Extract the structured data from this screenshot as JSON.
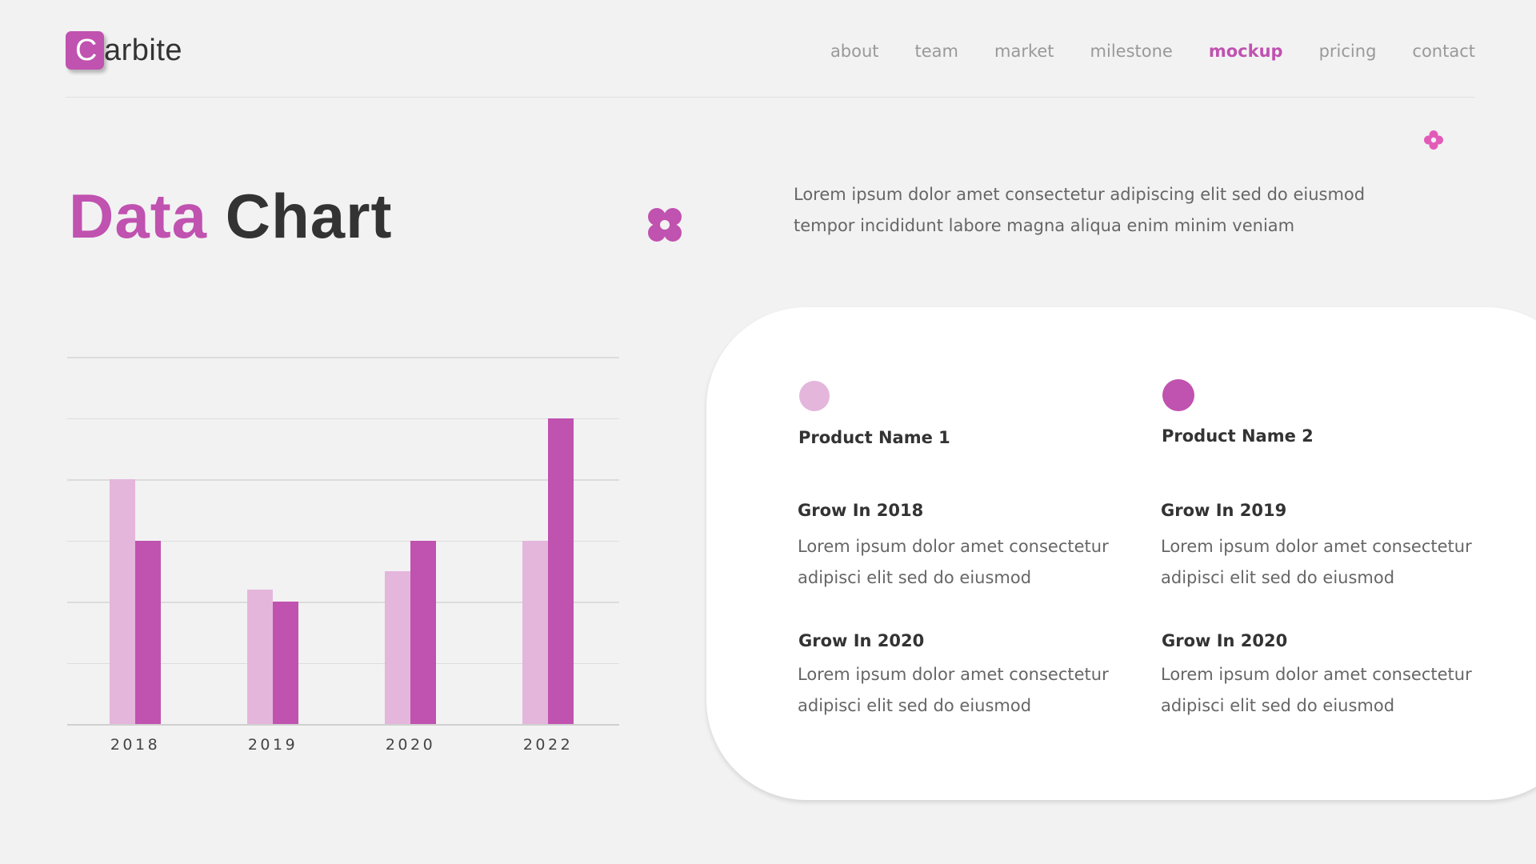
{
  "header": {
    "logo_letter": "C",
    "logo_rest": "arbite",
    "nav": [
      {
        "label": "about",
        "active": false
      },
      {
        "label": "team",
        "active": false
      },
      {
        "label": "market",
        "active": false
      },
      {
        "label": "milestone",
        "active": false
      },
      {
        "label": "mockup",
        "active": true
      },
      {
        "label": "pricing",
        "active": false
      },
      {
        "label": "contact",
        "active": false
      }
    ]
  },
  "title": {
    "accent": "Data",
    "rest": "Chart"
  },
  "intro": {
    "line1": "Lorem ipsum dolor amet consectetur adipiscing elit sed do eiusmod",
    "line2": "tempor incididunt labore magna aliqua enim minim veniam"
  },
  "icons": {
    "big_flower": "flower-icon",
    "small_flower": "flower-icon"
  },
  "colors": {
    "accent": "#c052b0",
    "light": "#e4b6dc",
    "background": "#f2f2f2",
    "text": "#333333",
    "muted": "#666666"
  },
  "chart_data": {
    "type": "bar",
    "title": "Data Chart",
    "categories": [
      "2018",
      "2019",
      "2020",
      "2022"
    ],
    "series": [
      {
        "name": "Product Name 1",
        "color": "#e4b6dc",
        "values": [
          4,
          2.2,
          2.5,
          3
        ]
      },
      {
        "name": "Product Name 2",
        "color": "#c052b0",
        "values": [
          3,
          2,
          3,
          5
        ]
      }
    ],
    "xlabel": "",
    "ylabel": "",
    "ylim": [
      0,
      6
    ],
    "grid": true,
    "gridlines": 6,
    "legend_position": "right card"
  },
  "card": {
    "legend": [
      {
        "name": "Product Name 1",
        "color": "#e4b6dc"
      },
      {
        "name": "Product Name 2",
        "color": "#c052b0"
      }
    ],
    "items": [
      {
        "title": "Grow In 2018",
        "line1": "Lorem ipsum dolor amet consectetur",
        "line2": "adipisci elit sed do eiusmod"
      },
      {
        "title": "Grow In 2019",
        "line1": "Lorem ipsum dolor amet consectetur",
        "line2": "adipisci elit sed do eiusmod"
      },
      {
        "title": "Grow In 2020",
        "line1": "Lorem ipsum dolor amet consectetur",
        "line2": "adipisci elit sed do eiusmod"
      },
      {
        "title": "Grow In 2020",
        "line1": "Lorem ipsum dolor amet consectetur",
        "line2": "adipisci elit sed do eiusmod"
      }
    ]
  }
}
